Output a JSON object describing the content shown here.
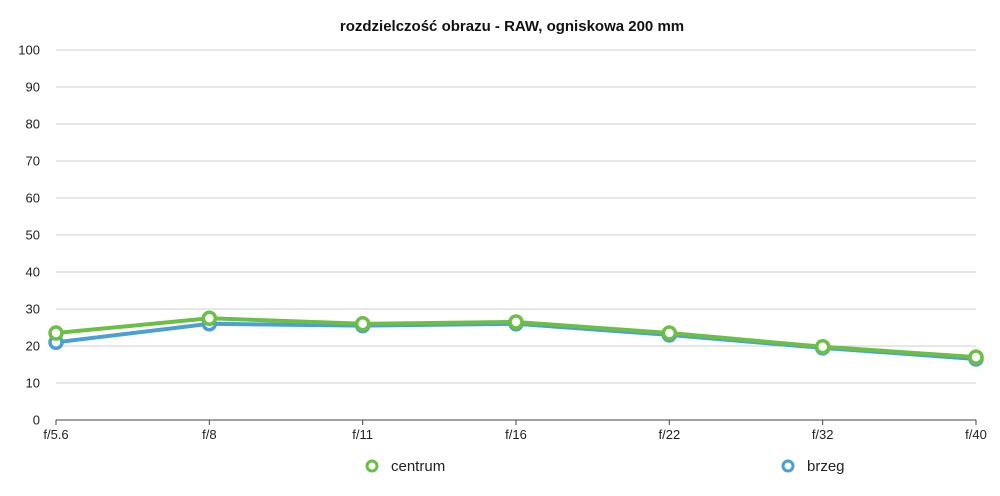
{
  "chart_data": {
    "type": "line",
    "title": "rozdzielczość obrazu - RAW, ogniskowa 200 mm",
    "categories": [
      "f/5.6",
      "f/8",
      "f/11",
      "f/16",
      "f/22",
      "f/32",
      "f/40"
    ],
    "ylim": [
      0,
      100
    ],
    "yticks": [
      "0",
      "10",
      "20",
      "30",
      "40",
      "50",
      "60",
      "70",
      "80",
      "90",
      "100"
    ],
    "grid": true,
    "legend_position": "bottom",
    "series": [
      {
        "name": "centrum",
        "color": "#6cbf45",
        "values": [
          23.5,
          27.5,
          26,
          26.5,
          23.5,
          19.8,
          17
        ]
      },
      {
        "name": "brzeg",
        "color": "#4a9fd4",
        "values": [
          21,
          26,
          25.5,
          26,
          23,
          19.5,
          16.5
        ]
      }
    ]
  }
}
